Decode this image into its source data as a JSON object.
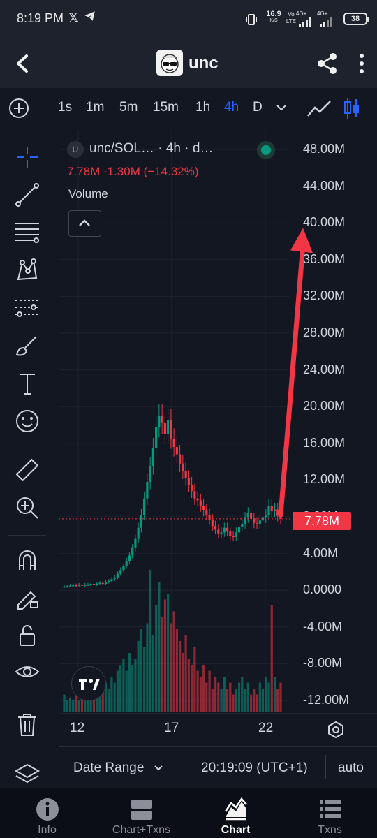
{
  "status_bar": {
    "time": "8:19 PM",
    "speed_value": "16.9",
    "speed_unit": "K/S",
    "volte_top": "Vo",
    "volte_bottom": "LTE",
    "net1": "4G+",
    "net2": "4G+",
    "battery": "38",
    "icons": [
      "x-logo-icon",
      "telegram-icon",
      "vibrate-icon",
      "signal-icon",
      "battery-icon"
    ]
  },
  "header": {
    "title": "unc",
    "icons": [
      "back-arrow-icon",
      "token-logo",
      "share-icon",
      "more-vertical-icon"
    ]
  },
  "toolbar": {
    "timeframes": [
      "1s",
      "1m",
      "5m",
      "15m",
      "1h",
      "4h",
      "D"
    ],
    "active_timeframe": "4h",
    "accent": "#2962ff"
  },
  "legend": {
    "symbol_label": "unc/SOL… · 4h · d…",
    "symbol_badge": "U",
    "price_line": "7.78M  -1.30M (−14.32%)",
    "volume_label": "Volume",
    "status_color": "#089981"
  },
  "chart_data": {
    "type": "candlestick",
    "interval": "4h",
    "y_axis_labels": [
      "48.00M",
      "44.00M",
      "40.00M",
      "36.00M",
      "32.00M",
      "28.00M",
      "24.00M",
      "20.00M",
      "16.00M",
      "12.00M",
      "8.00M",
      "4.00M",
      "0.0000",
      "-4.00M",
      "-8.00M",
      "-12.00M"
    ],
    "y_range": [
      -13,
      49
    ],
    "x_axis_labels": [
      "12",
      "17",
      "22"
    ],
    "last_price_label": "7.78M",
    "last_price": 7.78,
    "change": "-1.30M",
    "change_pct": "-14.32%",
    "up_color": "#089981",
    "down_color": "#f23645",
    "annotation": {
      "type": "arrow",
      "color": "#f23645",
      "from_value": 8.2,
      "to_value": 39.0
    },
    "close_series": [
      0.4,
      0.45,
      0.5,
      0.55,
      0.5,
      0.6,
      0.5,
      0.6,
      0.6,
      0.7,
      0.6,
      0.7,
      0.8,
      0.7,
      0.9,
      1.0,
      1.2,
      1.4,
      1.8,
      2.2,
      2.6,
      3.2,
      3.8,
      4.6,
      5.6,
      6.8,
      8.2,
      10.0,
      11.8,
      13.5,
      15.5,
      17.8,
      19.0,
      18.2,
      17.0,
      18.5,
      16.5,
      15.6,
      14.8,
      13.8,
      13.0,
      12.2,
      11.5,
      10.8,
      10.0,
      9.8,
      9.2,
      8.7,
      8.2,
      7.7,
      7.0,
      6.6,
      6.2,
      6.3,
      6.8,
      6.4,
      5.9,
      5.8,
      6.3,
      6.9,
      7.2,
      7.9,
      8.4,
      7.8,
      7.3,
      7.2,
      7.6,
      7.9,
      8.2,
      9.2,
      8.6,
      8.8,
      8.1,
      7.78
    ],
    "volume_series": [
      0.3,
      0.2,
      0.25,
      0.2,
      0.3,
      0.2,
      0.25,
      0.3,
      0.35,
      0.25,
      0.4,
      0.3,
      0.45,
      0.35,
      0.5,
      0.4,
      0.6,
      0.5,
      0.7,
      0.8,
      0.9,
      0.7,
      1.0,
      0.8,
      0.9,
      1.2,
      1.4,
      1.1,
      1.5,
      2.4,
      1.3,
      1.8,
      2.2,
      1.6,
      1.9,
      2.0,
      1.5,
      1.7,
      1.4,
      1.2,
      1.0,
      1.3,
      0.9,
      0.8,
      1.1,
      0.7,
      0.6,
      0.8,
      0.5,
      0.7,
      0.4,
      0.6,
      0.5,
      0.4,
      0.6,
      0.4,
      0.5,
      0.3,
      0.4,
      0.5,
      0.6,
      0.4,
      0.5,
      0.3,
      0.4,
      0.3,
      0.5,
      0.4,
      0.6,
      0.5,
      1.8,
      0.6,
      0.4,
      0.5
    ]
  },
  "date_bar": {
    "range_label": "Date Range",
    "time": "20:19:09 (UTC+1)",
    "scale": "auto"
  },
  "bottom_nav": {
    "items": [
      {
        "label": "Info",
        "icon": "info-icon"
      },
      {
        "label": "Chart+Txns",
        "icon": "split-view-icon"
      },
      {
        "label": "Chart",
        "icon": "area-chart-icon"
      },
      {
        "label": "Txns",
        "icon": "list-icon"
      }
    ],
    "active_index": 2
  }
}
